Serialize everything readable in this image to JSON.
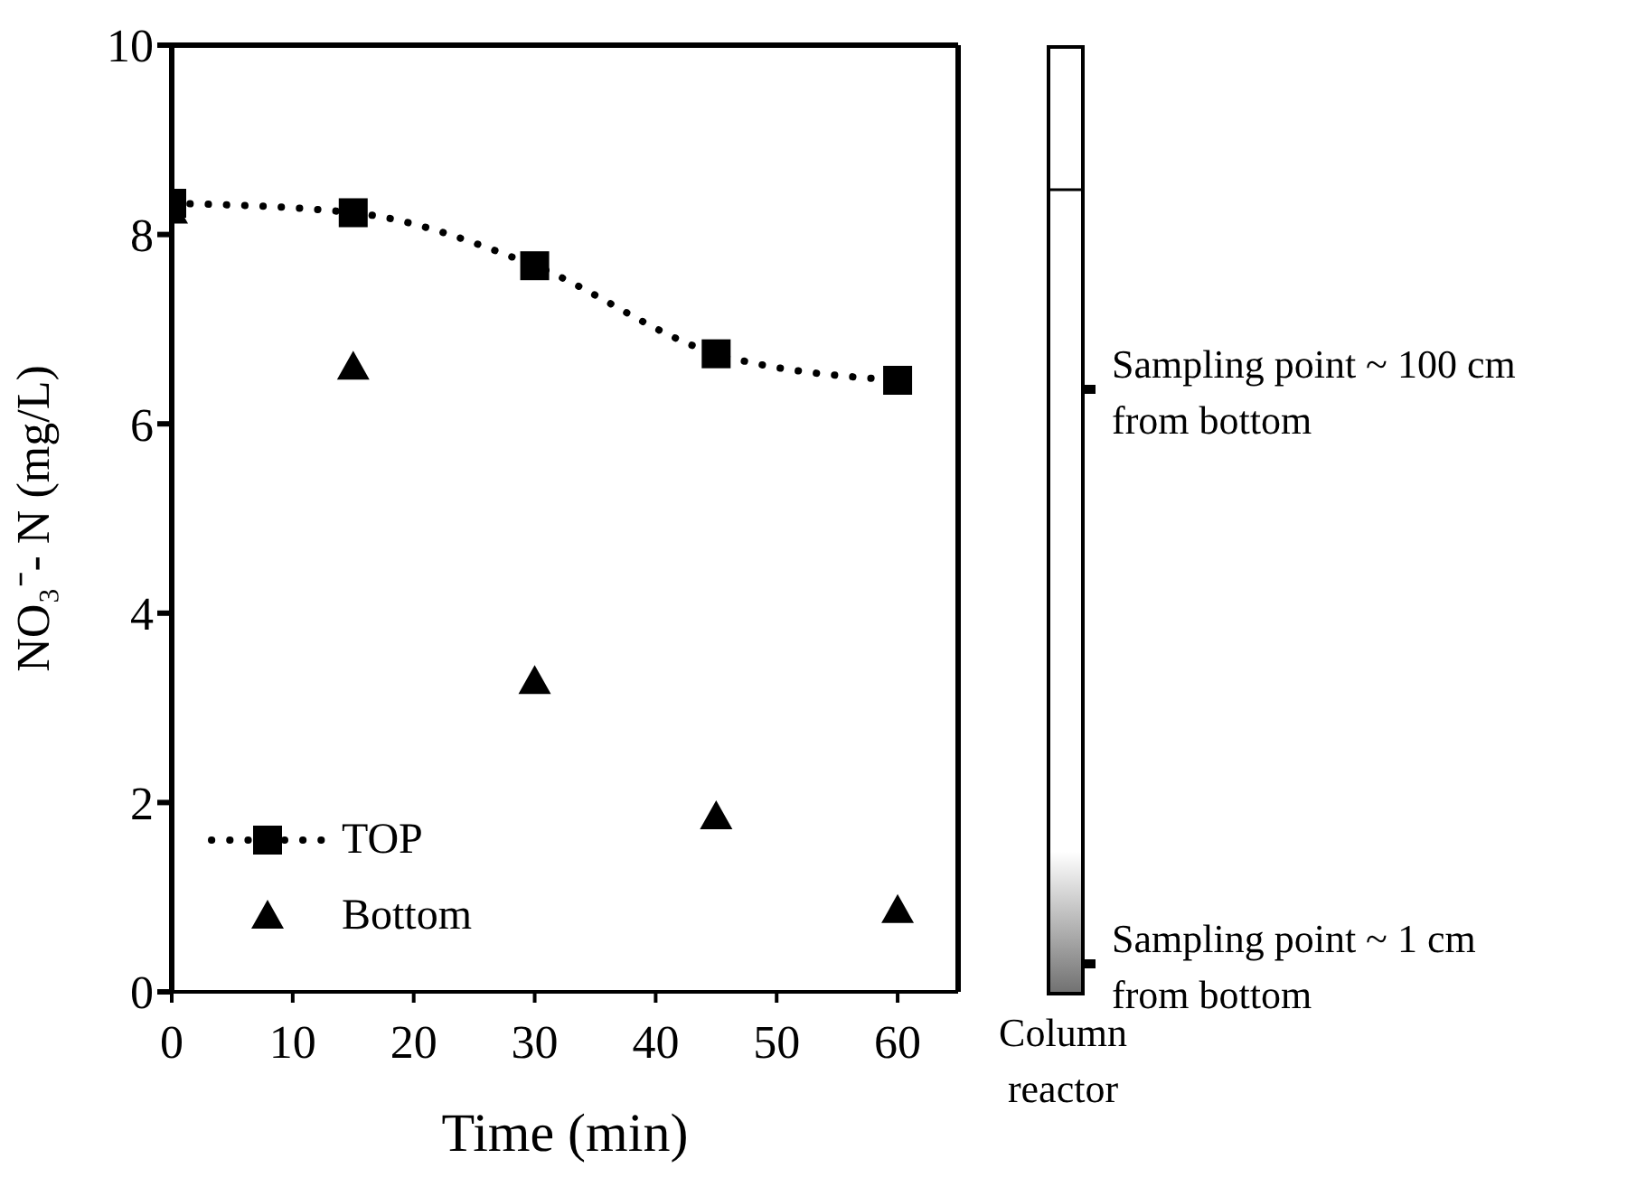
{
  "chart_data": {
    "type": "scatter",
    "xlabel": "Time (min)",
    "ylabel": "NO₃⁻- N (mg/L)",
    "x": [
      0,
      15,
      30,
      45,
      60
    ],
    "series": [
      {
        "name": "TOP",
        "type": "line",
        "color": "#000000",
        "marker": "square",
        "line_style": "dotted",
        "values": [
          8.33,
          8.23,
          7.67,
          6.74,
          6.46
        ]
      },
      {
        "name": "Bottom",
        "color": "#000000",
        "marker": "triangle",
        "values": [
          8.25,
          6.6,
          3.28,
          1.85,
          0.86
        ]
      }
    ],
    "xlim": [
      0,
      65
    ],
    "xticks": [
      0,
      10,
      20,
      30,
      40,
      50,
      60
    ],
    "ylim": [
      0,
      10
    ],
    "yticks": [
      0,
      2,
      4,
      6,
      8,
      10
    ],
    "grid": false,
    "legend": "bottom left",
    "annotations": [
      "Sampling point ~ 100 cm from bottom",
      "Sampling point ~ 1 cm from bottom",
      "Column reactor"
    ]
  }
}
